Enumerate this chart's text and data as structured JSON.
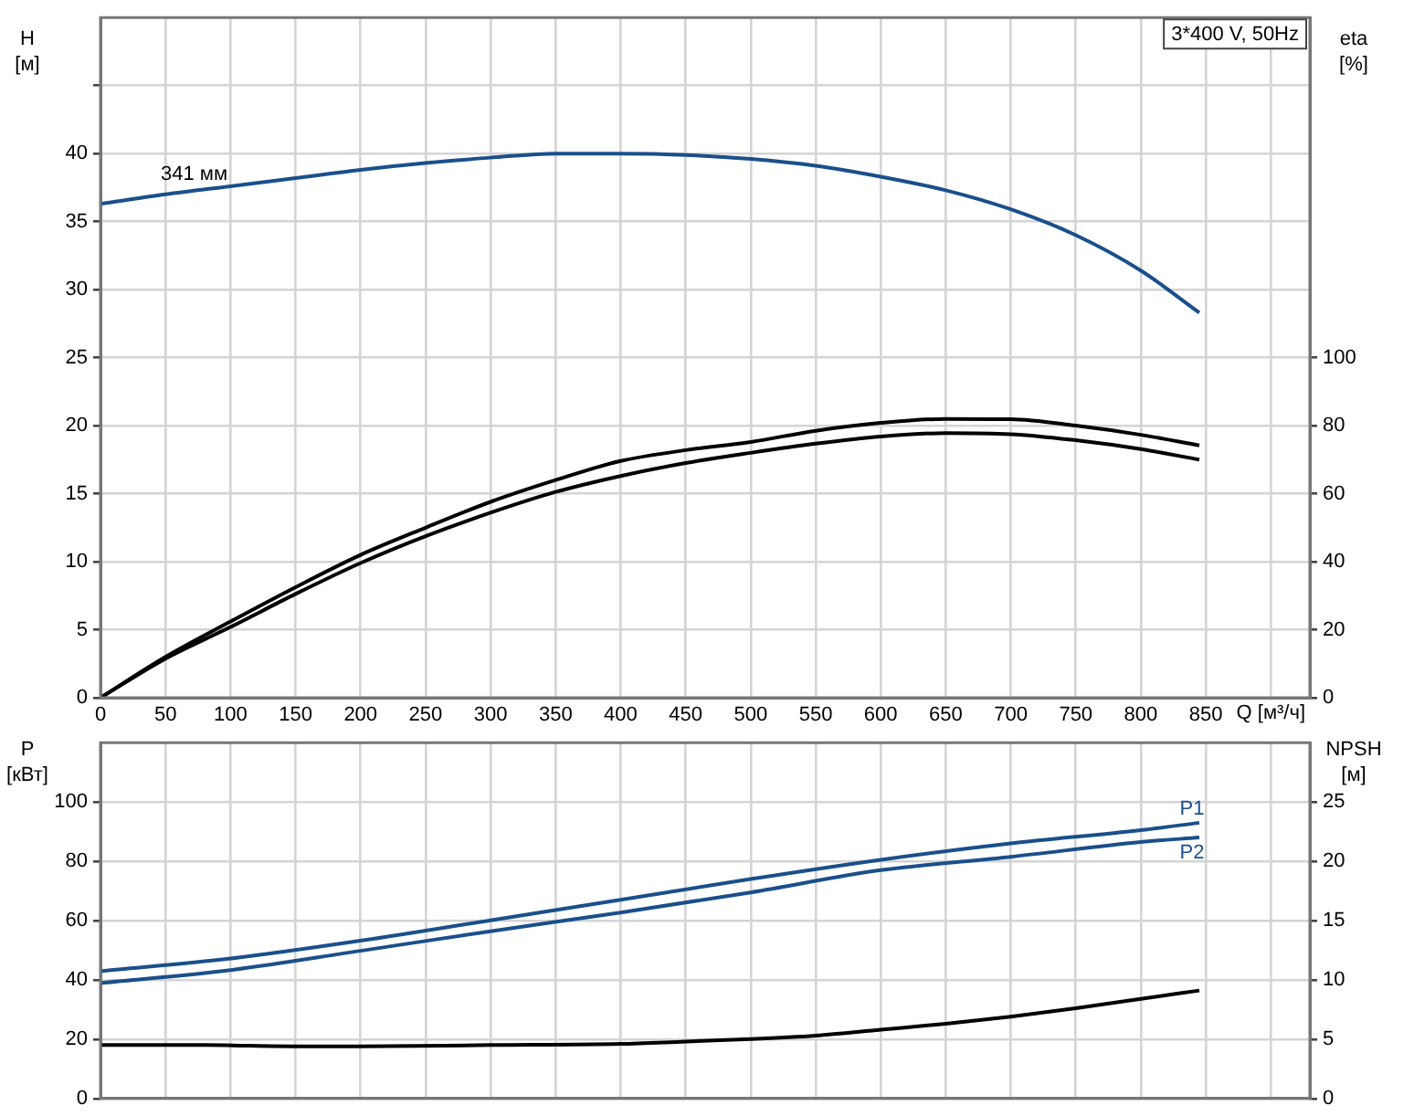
{
  "chart_data": [
    {
      "type": "line",
      "title": "3*400 V, 50Hz",
      "xlabel": "Q [м³/ч]",
      "ylabel": "H [м]",
      "y2label": "eta [%]",
      "xlim": [
        0,
        930
      ],
      "xticks": [
        0,
        50,
        100,
        150,
        200,
        250,
        300,
        350,
        400,
        450,
        500,
        550,
        600,
        650,
        700,
        750,
        800,
        850,
        {
          "value": 900,
          "label": null
        }
      ],
      "ylim": [
        0,
        50
      ],
      "yticks": [
        0,
        5,
        10,
        15,
        20,
        25,
        30,
        35,
        40,
        {
          "value": 45,
          "label": null
        }
      ],
      "y2lim": [
        0,
        200
      ],
      "y2ticks": [
        0,
        20,
        40,
        60,
        80,
        100
      ],
      "grid": true,
      "legend": false,
      "marker": "none",
      "annotations": [
        {
          "text": "341 мм",
          "x": 72,
          "y": 37.3
        }
      ],
      "series": [
        {
          "color": "#1a4f8b",
          "x": [
            0,
            50,
            100,
            150,
            200,
            250,
            300,
            350,
            400,
            450,
            500,
            550,
            600,
            650,
            700,
            750,
            800,
            845
          ],
          "values": [
            36.3,
            37.0,
            37.6,
            38.2,
            38.8,
            39.3,
            39.7,
            40.0,
            40.0,
            39.9,
            39.6,
            39.1,
            38.3,
            37.3,
            35.9,
            34.0,
            31.4,
            28.3
          ]
        },
        {
          "color": "#000000",
          "axis": "y2",
          "x": [
            0,
            50,
            100,
            150,
            200,
            250,
            300,
            350,
            400,
            450,
            500,
            550,
            600,
            650,
            700,
            750,
            800,
            845
          ],
          "values": [
            0,
            12,
            22.4,
            32.5,
            42,
            50,
            57.6,
            64,
            69.6,
            72.8,
            75.2,
            78.5,
            80.8,
            82,
            81.9,
            80,
            77.3,
            74.2
          ]
        },
        {
          "color": "#000000",
          "axis": "y2",
          "x": [
            0,
            50,
            100,
            150,
            200,
            250,
            300,
            350,
            400,
            450,
            500,
            550,
            600,
            650,
            700,
            750,
            800,
            845
          ],
          "values": [
            0,
            11.5,
            20.8,
            30.5,
            39.6,
            47.5,
            54.4,
            60.5,
            65.2,
            69,
            72,
            74.7,
            76.8,
            77.8,
            77.5,
            75.7,
            73.1,
            70
          ]
        }
      ]
    },
    {
      "type": "line",
      "ylabel": "P [кВт]",
      "y2label": "NPSH [м]",
      "xlim": [
        0,
        930
      ],
      "xticks": [
        0,
        50,
        100,
        150,
        200,
        250,
        300,
        350,
        400,
        450,
        500,
        550,
        600,
        650,
        700,
        750,
        800,
        850,
        900
      ],
      "ylim": [
        0,
        120
      ],
      "yticks": [
        0,
        20,
        40,
        60,
        80,
        100
      ],
      "y2lim": [
        0,
        30
      ],
      "y2ticks": [
        0,
        5,
        10,
        15,
        20,
        25
      ],
      "tick_labels": "y",
      "grid": true,
      "legend": false,
      "marker": "none",
      "series": [
        {
          "name": "P1",
          "color": "#1a4f8b",
          "x": [
            0,
            100,
            200,
            300,
            400,
            500,
            600,
            700,
            800,
            845
          ],
          "values": [
            42.9,
            47.2,
            53.2,
            60.1,
            67,
            74,
            80.5,
            86,
            90.5,
            93
          ]
        },
        {
          "name": "P2",
          "color": "#1a4f8b",
          "x": [
            0,
            100,
            200,
            300,
            400,
            500,
            600,
            700,
            800,
            845
          ],
          "values": [
            38.9,
            43.3,
            49.8,
            56.4,
            62.7,
            69.5,
            77,
            81.5,
            86.5,
            88
          ]
        },
        {
          "color": "#000000",
          "axis": "y2",
          "x": [
            0,
            80,
            150,
            200,
            300,
            400,
            450,
            500,
            550,
            600,
            650,
            700,
            750,
            800,
            845
          ],
          "values": [
            4.5,
            4.5,
            4.4,
            4.4,
            4.5,
            4.6,
            4.8,
            5.0,
            5.3,
            5.8,
            6.3,
            6.9,
            7.6,
            8.4,
            9.1
          ]
        }
      ]
    }
  ]
}
